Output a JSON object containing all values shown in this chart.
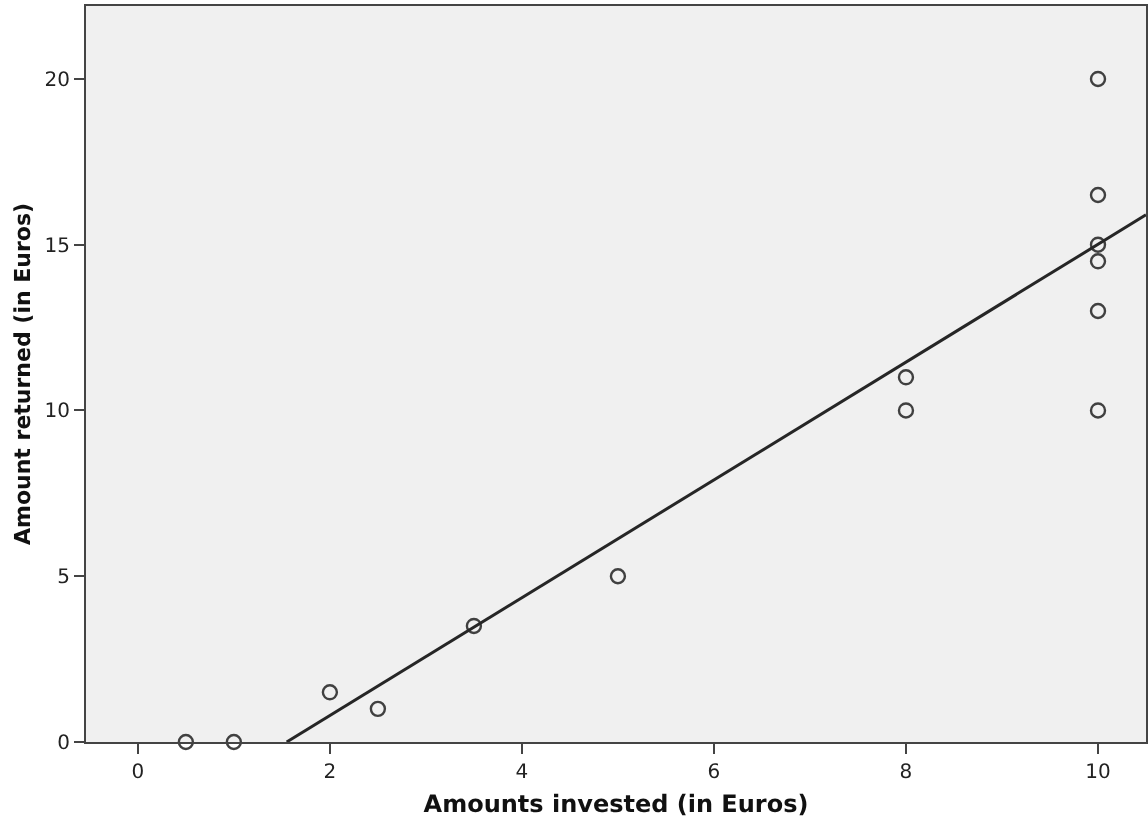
{
  "chart_data": {
    "type": "scatter",
    "xlabel": "Amounts invested (in Euros)",
    "ylabel": "Amount returned (in Euros)",
    "xlim": [
      -0.54,
      10.5
    ],
    "xticks": [
      0,
      2,
      4,
      6,
      8,
      10
    ],
    "ylim": [
      0,
      22.2
    ],
    "yticks": [
      0,
      5,
      10,
      15,
      20
    ],
    "grid": false,
    "legend": false,
    "series": [
      {
        "marker": "circle",
        "color": "#404040",
        "x": [
          0.5,
          1,
          2,
          2.5,
          3.5,
          5,
          8,
          8,
          10,
          10,
          10,
          10,
          10,
          10
        ],
        "values": [
          0,
          0,
          1.5,
          1,
          3.5,
          5,
          10,
          11,
          10,
          13,
          14.5,
          15,
          16.5,
          20
        ]
      },
      {
        "type": "line",
        "marker": "none",
        "color": "#262626",
        "x": [
          1.55,
          10.5
        ],
        "values": [
          0,
          15.9
        ]
      }
    ]
  }
}
